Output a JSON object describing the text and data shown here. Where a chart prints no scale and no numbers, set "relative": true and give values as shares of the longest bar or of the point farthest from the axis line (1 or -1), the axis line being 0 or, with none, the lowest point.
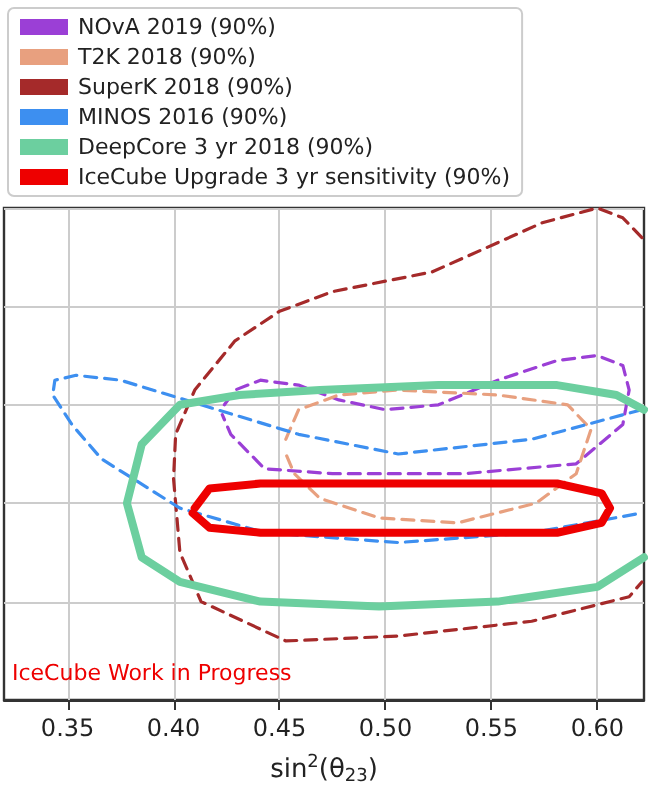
{
  "chart_data": {
    "type": "line",
    "relative": true,
    "xlabel": "sin$^{2}$(θ$_{23}$)",
    "annotations": [
      "IceCube Work in Progress"
    ],
    "xlim": [
      0.32,
      0.622
    ],
    "xticks": [
      0.35,
      {
        "value": 0.4,
        "label": "0.40"
      },
      0.45,
      {
        "value": 0.5,
        "label": "0.50"
      },
      0.55,
      {
        "value": 0.6,
        "label": "0.60"
      }
    ],
    "grid": true,
    "legend": "top left",
    "marker": "none",
    "series": [
      {
        "name": "NOvA 2019 (90%)",
        "color": "#9b3fd6",
        "line_style": "dashed",
        "x": [
          0.424,
          0.429,
          0.441,
          0.459,
          0.478,
          0.5,
          0.525,
          0.553,
          0.581,
          0.6,
          0.612,
          0.615,
          0.612,
          0.59,
          0.537,
          0.475,
          0.443,
          0.427,
          0.423
        ],
        "values": [
          0.6,
          0.63,
          0.65,
          0.64,
          0.61,
          0.59,
          0.6,
          0.65,
          0.69,
          0.7,
          0.68,
          0.63,
          0.56,
          0.48,
          0.46,
          0.46,
          0.47,
          0.54,
          0.58
        ]
      },
      {
        "name": "T2K 2018 (90%)",
        "color": "#e8a07f",
        "line_style": "dashed",
        "x": [
          0.453,
          0.459,
          0.478,
          0.506,
          0.553,
          0.586,
          0.597,
          0.59,
          0.571,
          0.534,
          0.497,
          0.469,
          0.457,
          0.452
        ],
        "values": [
          0.53,
          0.59,
          0.62,
          0.63,
          0.62,
          0.6,
          0.55,
          0.46,
          0.4,
          0.36,
          0.37,
          0.41,
          0.46,
          0.51
        ]
      },
      {
        "name": "SuperK 2018 (90%)",
        "color": "#a52a2a",
        "line_style": "dashed",
        "x": [
          0.621,
          0.612,
          0.6,
          0.574,
          0.522,
          0.475,
          0.45,
          0.429,
          0.41,
          0.401,
          0.4,
          0.403,
          0.413,
          0.453,
          0.506,
          0.569,
          0.615,
          0.621
        ],
        "values": [
          0.94,
          0.98,
          1,
          0.97,
          0.87,
          0.83,
          0.79,
          0.73,
          0.63,
          0.54,
          0.45,
          0.3,
          0.2,
          0.12,
          0.13,
          0.16,
          0.21,
          0.24
        ]
      },
      {
        "name": "MINOS 2016 (90%)",
        "color": "#3d8ff0",
        "line_style": "dashed",
        "x": [
          0.621,
          0.569,
          0.506,
          0.459,
          0.413,
          0.375,
          0.354,
          0.344,
          0.343,
          0.352,
          0.366,
          0.403,
          0.443,
          0.506,
          0.569,
          0.621
        ],
        "values": [
          0.59,
          0.53,
          0.5,
          0.54,
          0.6,
          0.65,
          0.66,
          0.65,
          0.62,
          0.56,
          0.49,
          0.39,
          0.34,
          0.32,
          0.34,
          0.38
        ]
      },
      {
        "name": "DeepCore 3 yr 2018 (90%)",
        "color": "#6ccf9f",
        "line_style": "solid",
        "x": [
          0.622,
          0.609,
          0.581,
          0.525,
          0.469,
          0.431,
          0.403,
          0.385,
          0.378,
          0.385,
          0.403,
          0.441,
          0.497,
          0.553,
          0.6,
          0.622
        ],
        "values": [
          0.59,
          0.62,
          0.64,
          0.64,
          0.63,
          0.62,
          0.6,
          0.52,
          0.4,
          0.29,
          0.24,
          0.2,
          0.19,
          0.2,
          0.23,
          0.29
        ]
      },
      {
        "name": "IceCube Upgrade 3 yr sensitivity (90%)",
        "color": "#ee0000",
        "line_style": "solid",
        "x": [
          0.41,
          0.417,
          0.441,
          0.506,
          0.581,
          0.602,
          0.606,
          0.602,
          0.581,
          0.506,
          0.441,
          0.417,
          0.409
        ],
        "values": [
          0.39,
          0.43,
          0.44,
          0.44,
          0.44,
          0.42,
          0.39,
          0.36,
          0.34,
          0.34,
          0.34,
          0.35,
          0.38
        ]
      }
    ]
  }
}
